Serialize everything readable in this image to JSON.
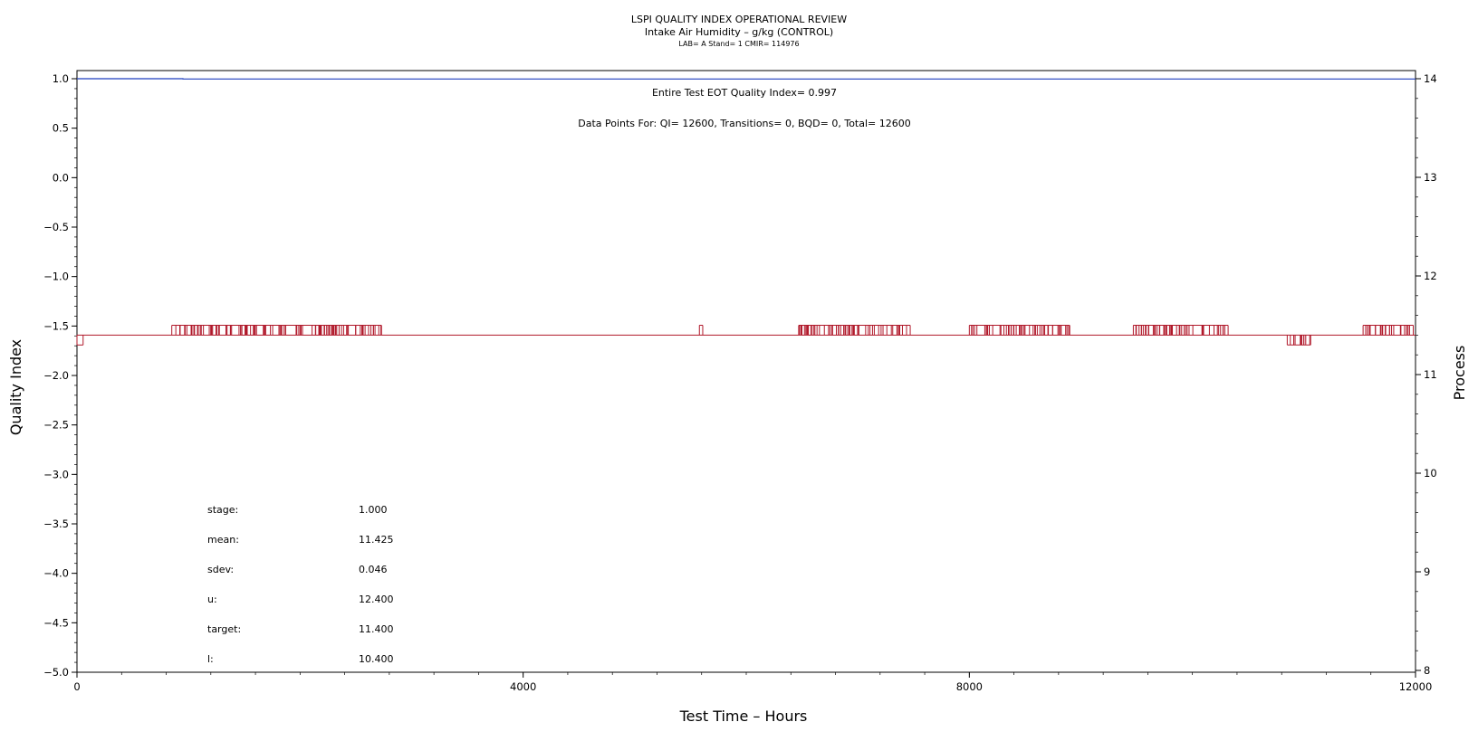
{
  "chart_data": {
    "type": "line",
    "title": "LSPI QUALITY INDEX OPERATIONAL REVIEW",
    "subtitle": "Intake Air Humidity – g/kg (CONTROL)",
    "subsubtitle": "LAB= A Stand= 1 CMIR= 114976",
    "xlabel": "Test Time – Hours",
    "ylabel": "Quality Index",
    "y2label": "Process",
    "xlim": [
      0,
      12000
    ],
    "ylim": [
      -5.0,
      1.0
    ],
    "y2lim": [
      8,
      14
    ],
    "xticks": [
      "0",
      "4000",
      "8000",
      "12000"
    ],
    "yticks": [
      "1.0",
      "0.5",
      "0.0",
      "−0.5",
      "−1.0",
      "−1.5",
      "−2.0",
      "−2.5",
      "−3.0",
      "−3.5",
      "−4.0",
      "−4.5",
      "−5.0"
    ],
    "y2ticks": [
      "14",
      "13",
      "12",
      "11",
      "10",
      "9",
      "8"
    ],
    "annotations": [
      "Entire Test EOT Quality Index=   0.997",
      "Data Points For: QI= 12600, Transitions=     0, BQD=     0, Total= 12600"
    ],
    "stats": [
      {
        "label": "stage:",
        "value": "1.000"
      },
      {
        "label": "mean:",
        "value": "11.425"
      },
      {
        "label": "sdev:",
        "value": "0.046"
      },
      {
        "label": "u:",
        "value": "12.400"
      },
      {
        "label": "target:",
        "value": "11.400"
      },
      {
        "label": "l:",
        "value": "10.400"
      }
    ],
    "series": [
      {
        "axis": "left",
        "color": "#1f3fbf",
        "x": [
          0,
          950,
          950,
          12000
        ],
        "y": [
          1.0,
          1.0,
          0.997,
          0.997
        ]
      },
      {
        "axis": "right",
        "color": "#b0182a",
        "baseline": 11.4,
        "segments": [
          {
            "x": [
              0,
              55
            ],
            "y": 11.3
          },
          {
            "x": [
              850,
              2350
            ],
            "y": 11.5,
            "noisy": true
          },
          {
            "x": [
              2170,
              2730
            ],
            "y": 11.5,
            "noisy": true
          },
          {
            "x": [
              5580,
              5610
            ],
            "y": 11.5
          },
          {
            "x": [
              6470,
              7470
            ],
            "y": 11.5,
            "noisy": true
          },
          {
            "x": [
              8000,
              8900
            ],
            "y": 11.5,
            "noisy": true
          },
          {
            "x": [
              9470,
              10320
            ],
            "y": 11.5,
            "noisy": true
          },
          {
            "x": [
              10850,
              11060
            ],
            "y": 11.3,
            "noisy": true
          },
          {
            "x": [
              11530,
              11980
            ],
            "y": 11.5,
            "noisy": true
          }
        ]
      }
    ]
  }
}
